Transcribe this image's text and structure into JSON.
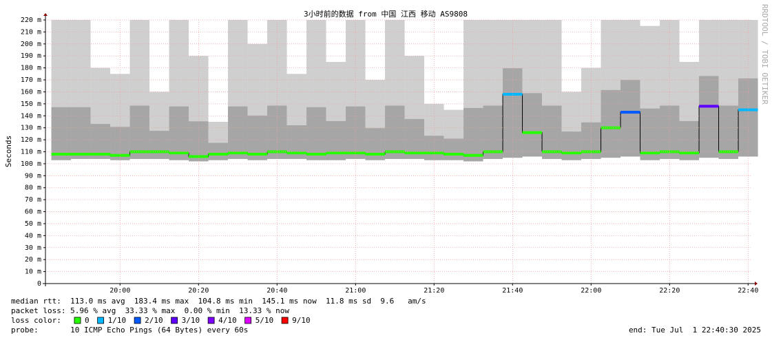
{
  "chart_data": {
    "type": "smokeping",
    "title": "3小时前的数据 from 中国 江西 移动 AS9808",
    "y_label": "Seconds",
    "watermark": "RRDTOOL / TOBI OETIKER",
    "x": [
      "19:45",
      "19:50",
      "19:55",
      "20:00",
      "20:05",
      "20:10",
      "20:15",
      "20:20",
      "20:25",
      "20:30",
      "20:35",
      "20:40",
      "20:45",
      "20:50",
      "20:55",
      "21:00",
      "21:05",
      "21:10",
      "21:15",
      "21:20",
      "21:25",
      "21:30",
      "21:35",
      "21:40",
      "21:45",
      "21:50",
      "21:55",
      "22:00",
      "22:05",
      "22:10",
      "22:15",
      "22:20",
      "22:25",
      "22:30",
      "22:35",
      "22:40"
    ],
    "xlim": [
      "19:41",
      "22:41"
    ],
    "xticks": [
      "20:00",
      "20:20",
      "20:40",
      "21:00",
      "21:20",
      "21:40",
      "22:00",
      "22:20",
      "22:40"
    ],
    "ylim": [
      0,
      220
    ],
    "yticks": [
      0,
      {
        "value": 10,
        "label": "10 m"
      },
      {
        "value": 20,
        "label": "20 m"
      },
      {
        "value": 30,
        "label": "30 m"
      },
      {
        "value": 40,
        "label": "40 m"
      },
      {
        "value": 50,
        "label": "50 m"
      },
      {
        "value": 60,
        "label": "60 m"
      },
      {
        "value": 70,
        "label": "70 m"
      },
      {
        "value": 80,
        "label": "80 m"
      },
      {
        "value": 90,
        "label": "90 m"
      },
      {
        "value": 100,
        "label": "100 m"
      },
      {
        "value": 110,
        "label": "110 m"
      },
      {
        "value": 120,
        "label": "120 m"
      },
      {
        "value": 130,
        "label": "130 m"
      },
      {
        "value": 140,
        "label": "140 m"
      },
      {
        "value": 150,
        "label": "150 m"
      },
      {
        "value": 160,
        "label": "160 m"
      },
      {
        "value": 170,
        "label": "170 m"
      },
      {
        "value": 180,
        "label": "180 m"
      },
      {
        "value": 190,
        "label": "190 m"
      },
      {
        "value": 200,
        "label": "200 m"
      },
      {
        "value": 210,
        "label": "210 m"
      },
      {
        "value": 220,
        "label": "220 m"
      }
    ],
    "grid": true,
    "median": [
      108,
      108,
      108,
      107,
      110,
      110,
      109,
      106,
      108,
      109,
      108,
      110,
      109,
      108,
      109,
      109,
      108,
      110,
      109,
      109,
      108,
      107,
      110,
      158,
      126,
      110,
      109,
      110,
      130,
      143,
      109,
      110,
      109,
      148,
      110,
      145
    ],
    "smoke_min": [
      103,
      104,
      104,
      103,
      104,
      104,
      103,
      102,
      103,
      104,
      103,
      104,
      104,
      103,
      103,
      104,
      103,
      104,
      104,
      103,
      103,
      102,
      104,
      105,
      106,
      104,
      103,
      104,
      105,
      106,
      103,
      104,
      103,
      105,
      104,
      106
    ],
    "smoke_max": [
      220,
      220,
      180,
      175,
      220,
      160,
      220,
      190,
      135,
      220,
      200,
      220,
      175,
      220,
      185,
      220,
      170,
      220,
      190,
      150,
      145,
      220,
      220,
      220,
      220,
      220,
      160,
      180,
      220,
      220,
      215,
      220,
      185,
      220,
      220,
      220
    ],
    "loss": [
      0,
      0,
      0,
      0,
      0,
      0,
      0,
      0,
      0,
      0,
      0,
      0,
      0,
      0,
      0,
      0,
      0,
      0,
      0,
      0,
      0,
      0,
      0,
      1,
      0,
      0,
      0,
      0,
      0,
      2,
      0,
      0,
      0,
      3,
      0,
      1
    ],
    "loss_legend_label": "loss color:",
    "loss_colors": [
      {
        "value": 0,
        "label": "0",
        "color": "#26ff00"
      },
      {
        "value": 1,
        "label": "1/10",
        "color": "#00b8ff"
      },
      {
        "value": 2,
        "label": "2/10",
        "color": "#0059ff"
      },
      {
        "value": 3,
        "label": "3/10",
        "color": "#5e00ff"
      },
      {
        "value": 4,
        "label": "4/10",
        "color": "#7e00ff"
      },
      {
        "value": 5,
        "label": "5/10",
        "color": "#dd00ff"
      },
      {
        "value": 9,
        "label": "9/10",
        "color": "#ff0000"
      }
    ],
    "stats": [
      "median rtt:  113.0 ms avg  183.4 ms max  104.8 ms min  145.1 ms now  11.8 ms sd  9.6   am/s",
      "packet loss: 5.96 % avg  33.33 % max  0.00 % min  13.33 % now"
    ],
    "probe": "probe:       10 ICMP Echo Pings (64 Bytes) every 60s",
    "end": "end: Tue Jul  1 22:40:30 2025"
  }
}
